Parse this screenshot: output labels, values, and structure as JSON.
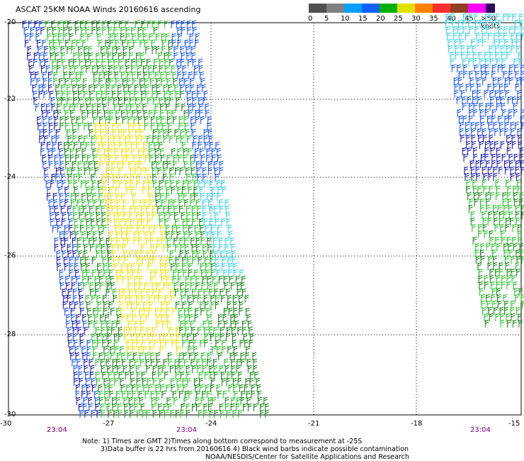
{
  "title": "ASCAT 25KM NOAA Winds 20160616 ascending",
  "legend": {
    "labels": [
      "0",
      "5",
      "10",
      "15",
      "20",
      "25",
      "30",
      "35",
      "40",
      "45",
      ">50 knots"
    ],
    "colors": [
      "#505050",
      "#808080",
      "#00a0ff",
      "#1060ff",
      "#00b000",
      "#e0e000",
      "#ff8000",
      "#ff3030",
      "#904020",
      "#ff00ff",
      "#300060"
    ]
  },
  "lat_labels": [
    "-20",
    "-22",
    "-24",
    "-26",
    "-28",
    "-30"
  ],
  "lon_labels": [
    "-30",
    "-27",
    "-24",
    "-21",
    "-18",
    "-15"
  ],
  "time_labels": [
    "23:04",
    "23:04",
    "23:04"
  ],
  "notes": [
    "Note: 1) Times are GMT 2)Times along bottom correspond to measurement at -25S",
    "3)Data buffer is 22 hrs from 20160616 4) Black wind barbs indicate possible contamination",
    "NOAA/NESDIS/Center for Satellite Applications and Research"
  ],
  "map": {
    "lat_range": [
      -30,
      -20
    ],
    "lon_range": [
      -30,
      -15
    ],
    "grid": true,
    "barb_colors": {
      "cyan": "#30d0f0",
      "blue": "#1050ff",
      "navy": "#1010b0",
      "green": "#20c020",
      "dkgreen": "#108010",
      "yellow": "#f0e000"
    }
  }
}
